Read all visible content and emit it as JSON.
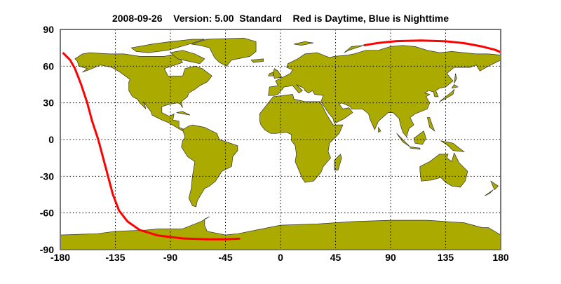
{
  "chart_data": {
    "type": "line",
    "title": "2008-09-26    Version: 5.00  Standard    Red is Daytime, Blue is Nighttime",
    "xlim": [
      -180,
      180
    ],
    "ylim": [
      -90,
      90
    ],
    "xticks": [
      -180,
      -135,
      -90,
      -45,
      0,
      45,
      90,
      135,
      180
    ],
    "yticks": [
      90,
      60,
      30,
      0,
      -30,
      -60,
      -90
    ],
    "grid": "dotted",
    "land_color": "#aaaa00",
    "series": [
      {
        "color": "#ff0000",
        "segments": [
          [
            [
              -178,
              71
            ],
            [
              -172,
              65
            ],
            [
              -168,
              58
            ],
            [
              -163,
              45
            ],
            [
              -158,
              30
            ],
            [
              -154,
              15
            ],
            [
              -149,
              0
            ],
            [
              -145,
              -15
            ],
            [
              -141,
              -30
            ],
            [
              -137,
              -45
            ],
            [
              -132,
              -58
            ],
            [
              -125,
              -67
            ],
            [
              -115,
              -74
            ],
            [
              -100,
              -78.5
            ],
            [
              -80,
              -80.8
            ],
            [
              -60,
              -81.5
            ],
            [
              -45,
              -81.5
            ],
            [
              -33,
              -81
            ]
          ],
          [
            [
              68,
              77
            ],
            [
              80,
              79
            ],
            [
              95,
              80.5
            ],
            [
              115,
              81
            ],
            [
              135,
              80.3
            ],
            [
              150,
              78.8
            ],
            [
              165,
              76
            ],
            [
              175,
              73.5
            ],
            [
              180,
              71.5
            ]
          ]
        ]
      }
    ]
  }
}
